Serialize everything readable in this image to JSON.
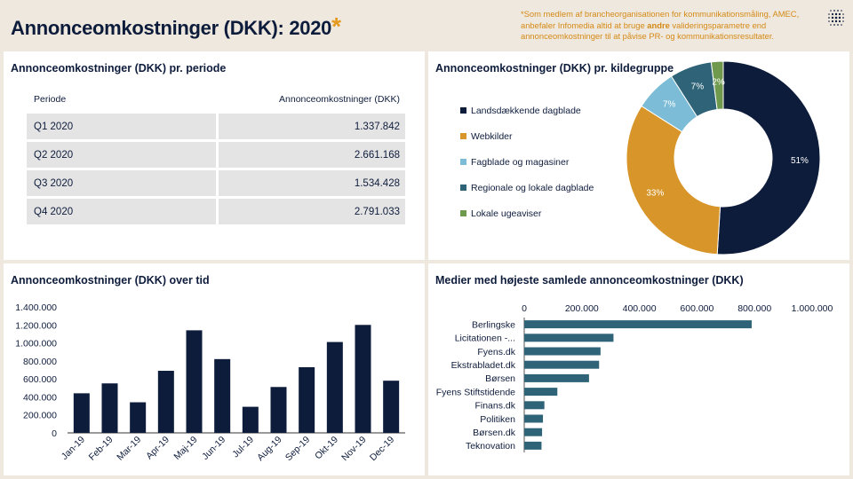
{
  "header": {
    "title": "Annonceomkostninger (DKK): 2020",
    "star": "*",
    "note_part1": "*Som medlem af brancheorganisationen for kommunikationsmåling, AMEC, anbefaler Infomedia altid at bruge ",
    "note_bold": "andre",
    "note_part2": " valideringsparametre end annonceomkostninger til at påvise PR- og kommunikationsresultater."
  },
  "periods": {
    "title": "Annonceomkostninger (DKK) pr. periode",
    "headers": [
      "Periode",
      "Annonceomkostninger (DKK)"
    ],
    "rows": [
      {
        "period": "Q1 2020",
        "value": "1.337.842"
      },
      {
        "period": "Q2 2020",
        "value": "2.661.168"
      },
      {
        "period": "Q3 2020",
        "value": "1.534.428"
      },
      {
        "period": "Q4 2020",
        "value": "2.791.033"
      }
    ]
  },
  "sources": {
    "title": "Annonceomkostninger (DKK) pr. kildegruppe"
  },
  "overtime": {
    "title": "Annonceomkostninger (DKK) over tid"
  },
  "media": {
    "title": "Medier med højeste samlede annonceomkostninger (DKK)"
  },
  "colors": {
    "navy": "#0e1c3c",
    "orange": "#d8962a",
    "lightblue": "#7cbcd6",
    "teal": "#2f6478",
    "green": "#6f9a4e",
    "hbar": "#2f6478"
  },
  "chart_data": [
    {
      "type": "table",
      "columns": [
        "Periode",
        "Annonceomkostninger (DKK)"
      ],
      "rows": [
        [
          "Q1 2020",
          1337842
        ],
        [
          "Q2 2020",
          2661168
        ],
        [
          "Q3 2020",
          1534428
        ],
        [
          "Q4 2020",
          2791033
        ]
      ]
    },
    {
      "type": "pie",
      "donut": true,
      "categories": [
        "Landsdækkende dagblade",
        "Webkilder",
        "Fagblade og magasiner",
        "Regionale og lokale dagblade",
        "Lokale ugeaviser"
      ],
      "values": [
        51,
        33,
        7,
        7,
        2
      ],
      "labels": [
        "51%",
        "33%",
        "7%",
        "7%",
        "2%"
      ],
      "legend": "left"
    },
    {
      "type": "bar",
      "categories": [
        "Jan-19",
        "Feb-19",
        "Mar-19",
        "Apr-19",
        "Maj-19",
        "Jun-19",
        "Jul-19",
        "Aug-19",
        "Sep-19",
        "Okt-19",
        "Nov-19",
        "Dec-19"
      ],
      "values": [
        440000,
        550000,
        340000,
        690000,
        1140000,
        820000,
        290000,
        510000,
        730000,
        1010000,
        1200000,
        580000
      ],
      "yticks": [
        "0",
        "200.000",
        "400.000",
        "600.000",
        "800.000",
        "1.000.000",
        "1.200.000",
        "1.400.000"
      ],
      "ylim": [
        0,
        1400000
      ]
    },
    {
      "type": "bar",
      "orientation": "horizontal",
      "categories": [
        "Berlingske",
        "Licitationen -...",
        "Fyens.dk",
        "Ekstrabladet.dk",
        "Børsen",
        "Fyens Stiftstidende",
        "Finans.dk",
        "Politiken",
        "Børsen.dk",
        "Teknovation"
      ],
      "values": [
        790000,
        310000,
        265000,
        260000,
        225000,
        115000,
        70000,
        65000,
        62000,
        60000
      ],
      "xticks": [
        "0",
        "200.000",
        "400.000",
        "600.000",
        "800.000",
        "1.000.000"
      ],
      "xlim": [
        0,
        1000000
      ],
      "axis_position": "top"
    }
  ]
}
